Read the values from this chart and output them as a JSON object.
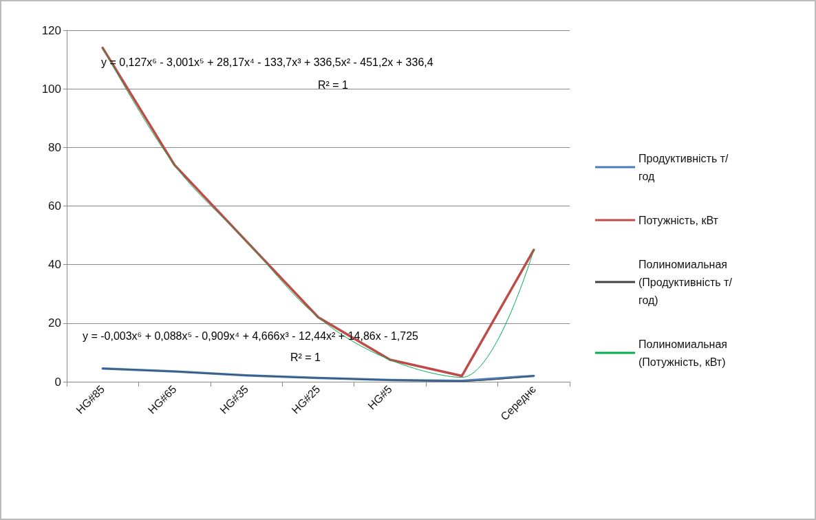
{
  "chart_data": {
    "type": "line",
    "categories": [
      "HG#85",
      "HG#65",
      "HG#35",
      "HG#25",
      "HG#5",
      null,
      "Середнє"
    ],
    "ylim": [
      0,
      120
    ],
    "yticks": [
      0,
      20,
      40,
      60,
      80,
      100,
      120
    ],
    "grid": "y",
    "legend": "right",
    "marker": "none",
    "series": [
      {
        "name": "Продуктивність т/год",
        "color": "#4a7ebb",
        "values": [
          4.5,
          3.5,
          2.2,
          1.3,
          0.6,
          0.3,
          2
        ]
      },
      {
        "name": "Потужність, кВт",
        "color": "#be4b48",
        "values": [
          114,
          74,
          48,
          22,
          7.5,
          2,
          45
        ]
      },
      {
        "name": "Полиномиальная (Продуктивність т/год)",
        "color": "#404040",
        "x": [
          "HG#85",
          "HG#65",
          "HG#35",
          "HG#25",
          "HG#5",
          null,
          "Середнє"
        ],
        "values": [
          4.5,
          3.5,
          2.2,
          1.3,
          0.6,
          0.2,
          2
        ]
      },
      {
        "name": "Полиномиальная (Потужність, кВт)",
        "color": "#00b050",
        "x": [
          "HG#85",
          "HG#65",
          "HG#35",
          "HG#25",
          "HG#5",
          null,
          "Середнє"
        ],
        "values": [
          114,
          74,
          48,
          22,
          7.5,
          1.5,
          45
        ]
      }
    ],
    "annotations": [
      "y = 0,127x⁶ - 3,001x⁵ + 28,17x⁴ - 133,7x³ + 336,5x² - 451,2x + 336,4",
      "R² = 1",
      "y = -0,003x⁶ + 0,088x⁵ - 0,909x⁴ + 4,666x³ - 12,44x² + 14,86x - 1,725",
      "R² = 1"
    ]
  }
}
